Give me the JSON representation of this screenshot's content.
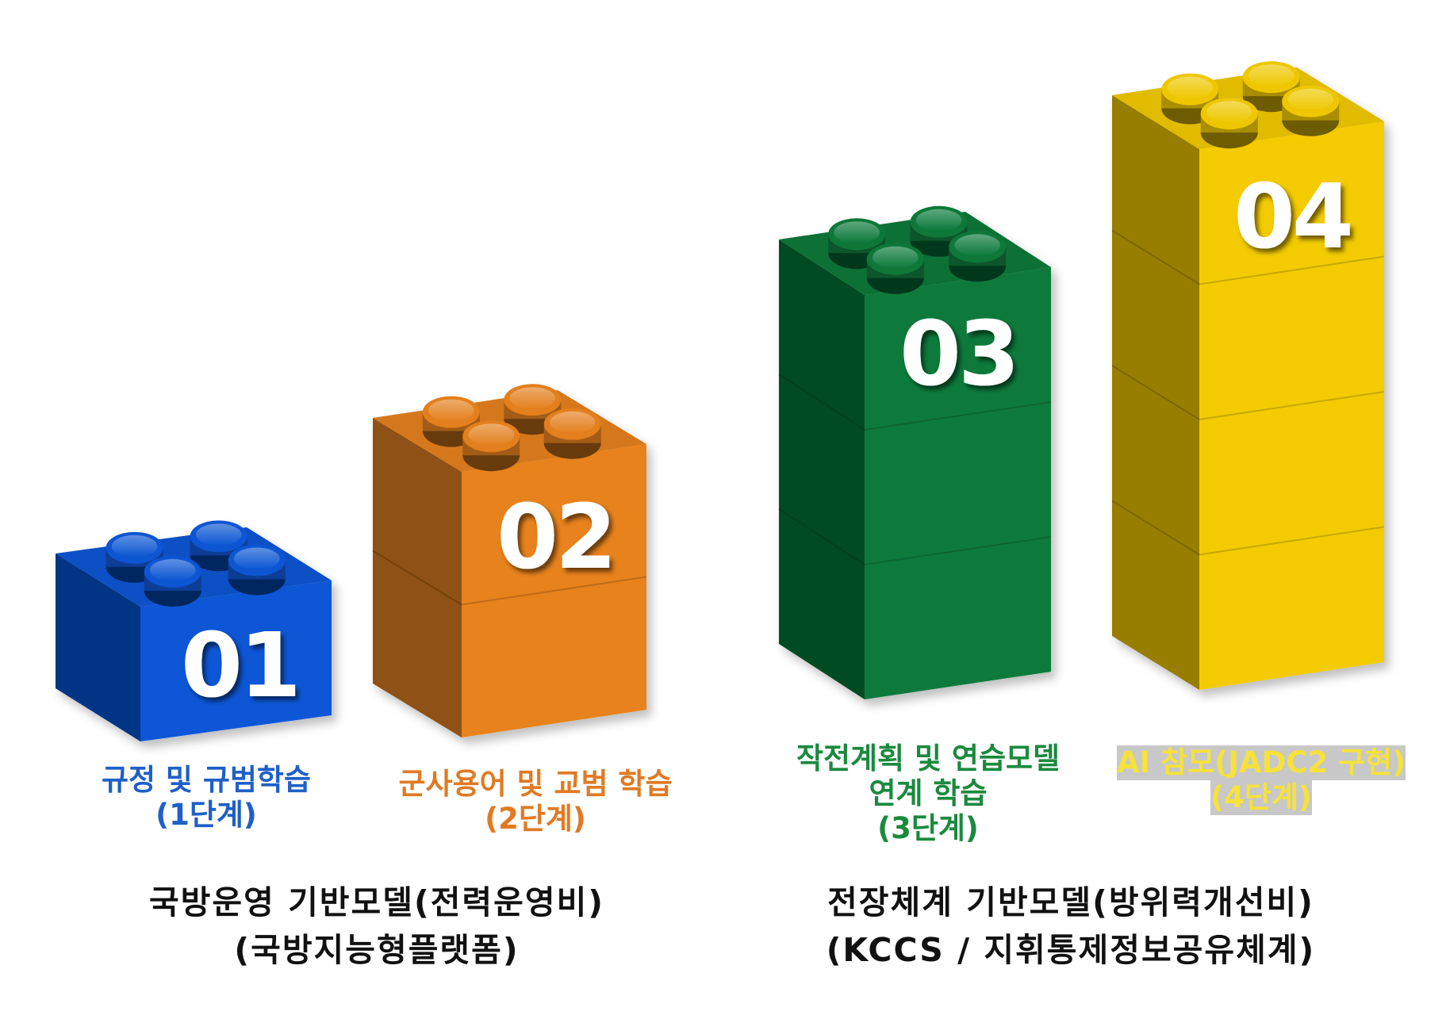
{
  "colors": {
    "blue": "#0a57d6",
    "orange": "#e8821e",
    "green": "#0a7a3a",
    "yellow": "#f3cb00",
    "stage4_text": "#f6e23a"
  },
  "blocks": [
    {
      "number": "01",
      "label_lines": [
        "규정 및 규범학습",
        "(1단계)"
      ],
      "label_color": "#1f5fc8"
    },
    {
      "number": "02",
      "label_lines": [
        "군사용어 및 교범 학습",
        "(2단계)"
      ],
      "label_color": "#e07a23"
    },
    {
      "number": "03",
      "label_lines": [
        "작전계획 및 연습모델",
        "연계 학습",
        "(3단계)"
      ],
      "label_color": "#1a8a3e"
    },
    {
      "number": "04",
      "label_lines": [
        "AI 참모(JADC2 구현)",
        "(4단계)"
      ],
      "label_color": "#f6e23a"
    }
  ],
  "groups": [
    {
      "lines": [
        "국방운영 기반모델(전력운영비)",
        "(국방지능형플랫폼)"
      ]
    },
    {
      "lines": [
        "전장체계 기반모델(방위력개선비)",
        "(KCCS / 지휘통제정보공유체계)"
      ]
    }
  ]
}
